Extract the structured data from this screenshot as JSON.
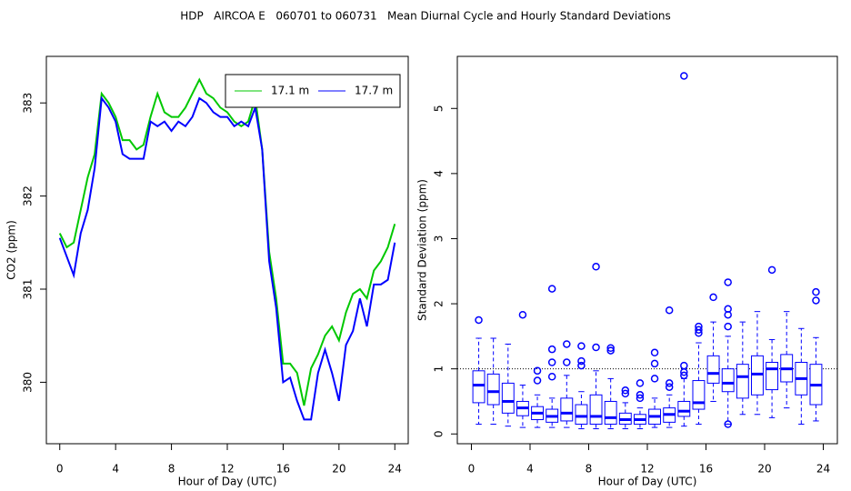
{
  "title": "HDP   AIRCOA E   060701 to 060731   Mean Diurnal Cycle and Hourly Standard Deviations",
  "chart_data": [
    {
      "type": "line",
      "xlabel": "Hour of Day (UTC)",
      "ylabel": "CO2 (ppm)",
      "xlim": [
        -0.96,
        24.96
      ],
      "ylim": [
        379.34,
        383.5
      ],
      "xticks": [
        0,
        4,
        8,
        12,
        16,
        20,
        24
      ],
      "yticks": [
        380,
        381,
        382,
        383
      ],
      "legend": "topright",
      "x": [
        0,
        0.5,
        1,
        1.5,
        2,
        2.5,
        3,
        3.5,
        4,
        4.5,
        5,
        5.5,
        6,
        6.5,
        7,
        7.5,
        8,
        8.5,
        9,
        9.5,
        10,
        10.5,
        11,
        11.5,
        12,
        12.5,
        13,
        13.5,
        14,
        14.5,
        15,
        15.5,
        16,
        16.5,
        17,
        17.5,
        18,
        18.5,
        19,
        19.5,
        20,
        20.5,
        21,
        21.5,
        22,
        22.5,
        23,
        23.5,
        24
      ],
      "series": [
        {
          "name": "17.1 m",
          "color": "#00c800",
          "values": [
            381.6,
            381.45,
            381.5,
            381.85,
            382.2,
            382.45,
            383.1,
            383.0,
            382.85,
            382.6,
            382.6,
            382.5,
            382.55,
            382.85,
            383.1,
            382.9,
            382.85,
            382.85,
            382.95,
            383.1,
            383.25,
            383.1,
            383.05,
            382.95,
            382.9,
            382.8,
            382.75,
            382.8,
            383.05,
            382.5,
            381.4,
            380.9,
            380.2,
            380.2,
            380.1,
            379.75,
            380.15,
            380.3,
            380.5,
            380.6,
            380.45,
            380.75,
            380.95,
            381.0,
            380.9,
            381.2,
            381.3,
            381.45,
            381.7
          ]
        },
        {
          "name": "17.7 m",
          "color": "#0000ff",
          "values": [
            381.55,
            381.35,
            381.15,
            381.6,
            381.85,
            382.3,
            383.05,
            382.95,
            382.8,
            382.45,
            382.4,
            382.4,
            382.4,
            382.8,
            382.75,
            382.8,
            382.7,
            382.8,
            382.75,
            382.85,
            383.05,
            383.0,
            382.9,
            382.85,
            382.85,
            382.75,
            382.8,
            382.75,
            382.95,
            382.5,
            381.3,
            380.8,
            380.0,
            380.05,
            379.8,
            379.6,
            379.6,
            380.1,
            380.35,
            380.1,
            379.8,
            380.4,
            380.55,
            380.9,
            380.6,
            381.05,
            381.05,
            381.1,
            381.5
          ]
        }
      ]
    },
    {
      "type": "boxplot",
      "xlabel": "Hour of Day (UTC)",
      "ylabel": "Standard Deviation (ppm)",
      "xlim": [
        -0.96,
        24.96
      ],
      "ylim": [
        -0.15,
        5.8
      ],
      "xticks": [
        0,
        4,
        8,
        12,
        16,
        20,
        24
      ],
      "yticks": [
        0,
        1,
        2,
        3,
        4,
        5
      ],
      "reference_line": 1,
      "color": "#0000ff",
      "x": [
        0.5,
        1.5,
        2.5,
        3.5,
        4.5,
        5.5,
        6.5,
        7.5,
        8.5,
        9.5,
        10.5,
        11.5,
        12.5,
        13.5,
        14.5,
        15.5,
        16.5,
        17.5,
        18.5,
        19.5,
        20.5,
        21.5,
        22.5,
        23.5
      ],
      "boxes": [
        {
          "low": 0.15,
          "q1": 0.48,
          "median": 0.75,
          "q3": 0.97,
          "high": 1.47,
          "outliers": [
            1.75
          ]
        },
        {
          "low": 0.15,
          "q1": 0.45,
          "median": 0.65,
          "q3": 0.92,
          "high": 1.47,
          "outliers": []
        },
        {
          "low": 0.12,
          "q1": 0.32,
          "median": 0.5,
          "q3": 0.78,
          "high": 1.38,
          "outliers": []
        },
        {
          "low": 0.1,
          "q1": 0.28,
          "median": 0.4,
          "q3": 0.5,
          "high": 0.75,
          "outliers": [
            1.83
          ]
        },
        {
          "low": 0.1,
          "q1": 0.22,
          "median": 0.32,
          "q3": 0.42,
          "high": 0.6,
          "outliers": [
            0.82,
            0.97
          ]
        },
        {
          "low": 0.1,
          "q1": 0.18,
          "median": 0.27,
          "q3": 0.38,
          "high": 0.55,
          "outliers": [
            0.88,
            1.1,
            1.3,
            2.23
          ]
        },
        {
          "low": 0.1,
          "q1": 0.2,
          "median": 0.32,
          "q3": 0.55,
          "high": 0.9,
          "outliers": [
            1.1,
            1.38
          ]
        },
        {
          "low": 0.08,
          "q1": 0.15,
          "median": 0.27,
          "q3": 0.45,
          "high": 0.65,
          "outliers": [
            1.05,
            1.12,
            1.35
          ]
        },
        {
          "low": 0.08,
          "q1": 0.15,
          "median": 0.27,
          "q3": 0.6,
          "high": 0.97,
          "outliers": [
            1.33,
            2.57
          ]
        },
        {
          "low": 0.08,
          "q1": 0.15,
          "median": 0.25,
          "q3": 0.5,
          "high": 0.85,
          "outliers": [
            1.28,
            1.32
          ]
        },
        {
          "low": 0.08,
          "q1": 0.15,
          "median": 0.22,
          "q3": 0.32,
          "high": 0.48,
          "outliers": [
            0.62,
            0.67
          ]
        },
        {
          "low": 0.08,
          "q1": 0.15,
          "median": 0.22,
          "q3": 0.3,
          "high": 0.4,
          "outliers": [
            0.55,
            0.6,
            0.78
          ]
        },
        {
          "low": 0.1,
          "q1": 0.15,
          "median": 0.27,
          "q3": 0.38,
          "high": 0.55,
          "outliers": [
            0.85,
            1.08,
            1.25
          ]
        },
        {
          "low": 0.1,
          "q1": 0.18,
          "median": 0.3,
          "q3": 0.4,
          "high": 0.6,
          "outliers": [
            0.72,
            0.78,
            1.9
          ]
        },
        {
          "low": 0.12,
          "q1": 0.27,
          "median": 0.35,
          "q3": 0.5,
          "high": 0.85,
          "outliers": [
            0.9,
            0.95,
            1.05,
            5.5
          ]
        },
        {
          "low": 0.15,
          "q1": 0.38,
          "median": 0.48,
          "q3": 0.82,
          "high": 1.4,
          "outliers": [
            1.55,
            1.6,
            1.65
          ]
        },
        {
          "low": 0.5,
          "q1": 0.78,
          "median": 0.93,
          "q3": 1.2,
          "high": 1.72,
          "outliers": [
            2.1
          ]
        },
        {
          "low": 0.15,
          "q1": 0.65,
          "median": 0.78,
          "q3": 1.0,
          "high": 1.5,
          "outliers": [
            0.15,
            1.65,
            1.83,
            1.92,
            2.33
          ]
        },
        {
          "low": 0.3,
          "q1": 0.55,
          "median": 0.88,
          "q3": 1.07,
          "high": 1.72,
          "outliers": []
        },
        {
          "low": 0.3,
          "q1": 0.6,
          "median": 0.92,
          "q3": 1.2,
          "high": 1.88,
          "outliers": []
        },
        {
          "low": 0.25,
          "q1": 0.68,
          "median": 1.0,
          "q3": 1.1,
          "high": 1.45,
          "outliers": [
            2.52
          ]
        },
        {
          "low": 0.4,
          "q1": 0.8,
          "median": 1.0,
          "q3": 1.22,
          "high": 1.88,
          "outliers": []
        },
        {
          "low": 0.15,
          "q1": 0.6,
          "median": 0.85,
          "q3": 1.1,
          "high": 1.62,
          "outliers": []
        },
        {
          "low": 0.2,
          "q1": 0.45,
          "median": 0.75,
          "q3": 1.07,
          "high": 1.48,
          "outliers": [
            2.05,
            2.18
          ]
        }
      ]
    }
  ]
}
